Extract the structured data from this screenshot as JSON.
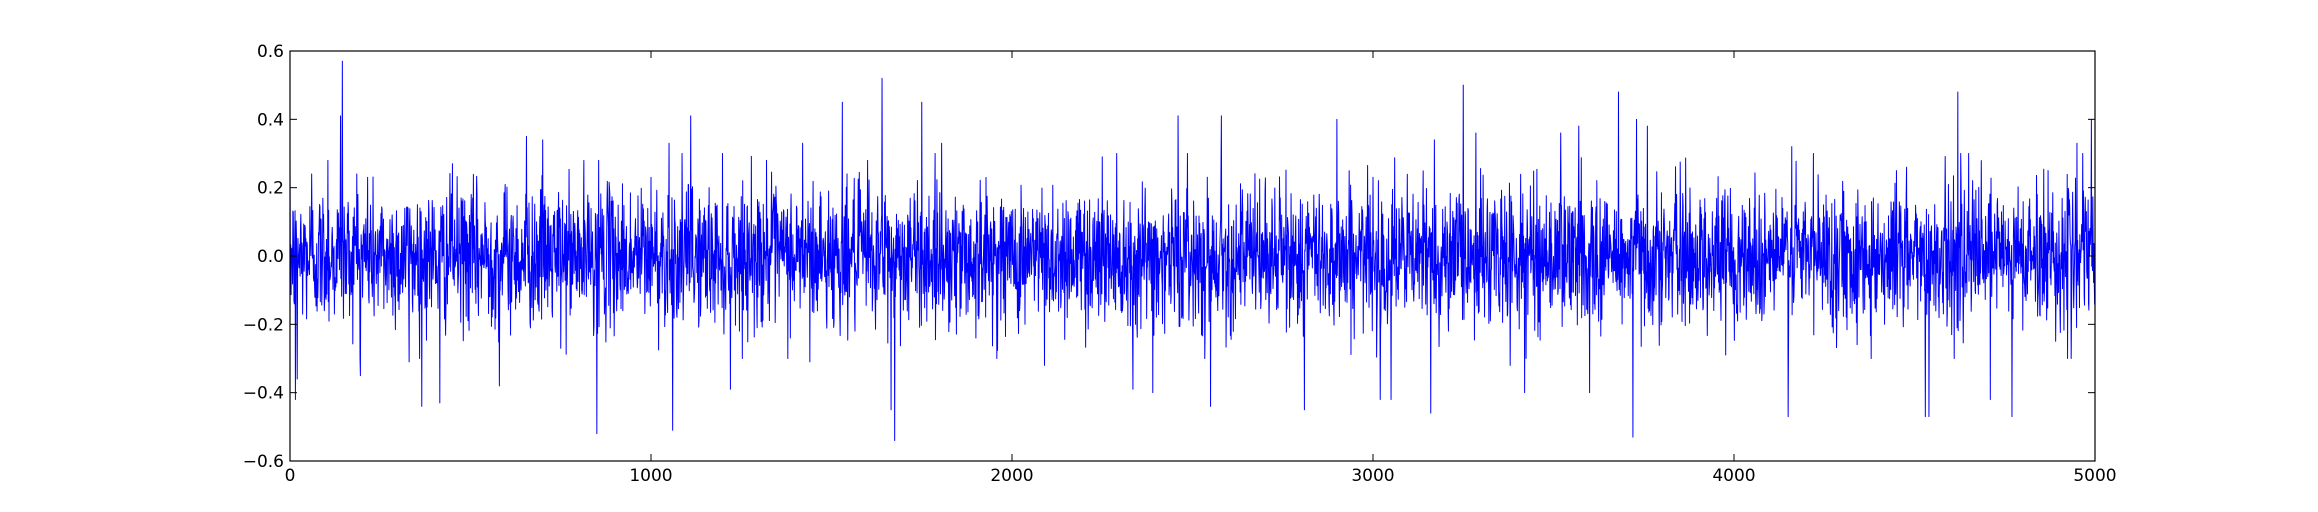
{
  "chart_data": {
    "type": "line",
    "title": "",
    "xlabel": "",
    "ylabel": "",
    "xlim": [
      0,
      5000
    ],
    "ylim": [
      -0.6,
      0.6
    ],
    "xticks": [
      0,
      1000,
      2000,
      3000,
      4000,
      5000
    ],
    "xtick_labels": [
      "0",
      "1000",
      "2000",
      "3000",
      "4000",
      "5000"
    ],
    "yticks": [
      -0.6,
      -0.4,
      -0.2,
      0.0,
      0.2,
      0.4,
      0.6
    ],
    "ytick_labels": [
      "−0.6",
      "−0.4",
      "−0.2",
      "0.0",
      "0.2",
      "0.4",
      "0.6"
    ],
    "grid": false,
    "legend": "none",
    "line_color": "#0000ff",
    "series": [
      {
        "n_points": 5000,
        "noise_std": 0.1,
        "peaks": [
          [
            15,
            -0.42
          ],
          [
            20,
            -0.36
          ],
          [
            60,
            0.24
          ],
          [
            105,
            0.28
          ],
          [
            140,
            0.41
          ],
          [
            145,
            0.57
          ],
          [
            185,
            0.24
          ],
          [
            195,
            -0.35
          ],
          [
            215,
            0.23
          ],
          [
            330,
            -0.31
          ],
          [
            365,
            -0.44
          ],
          [
            415,
            -0.43
          ],
          [
            450,
            0.27
          ],
          [
            580,
            -0.38
          ],
          [
            655,
            0.35
          ],
          [
            700,
            0.34
          ],
          [
            750,
            -0.27
          ],
          [
            850,
            -0.52
          ],
          [
            855,
            0.28
          ],
          [
            1000,
            0.23
          ],
          [
            1050,
            0.33
          ],
          [
            1060,
            -0.51
          ],
          [
            1110,
            0.41
          ],
          [
            1220,
            -0.39
          ],
          [
            1320,
            0.28
          ],
          [
            1420,
            0.33
          ],
          [
            1440,
            -0.31
          ],
          [
            1530,
            0.45
          ],
          [
            1600,
            0.28
          ],
          [
            1640,
            0.52
          ],
          [
            1665,
            -0.45
          ],
          [
            1675,
            -0.54
          ],
          [
            1750,
            0.45
          ],
          [
            1805,
            0.33
          ],
          [
            1900,
            -0.24
          ],
          [
            2090,
            -0.32
          ],
          [
            2250,
            0.29
          ],
          [
            2290,
            0.3
          ],
          [
            2335,
            -0.39
          ],
          [
            2390,
            -0.4
          ],
          [
            2460,
            0.41
          ],
          [
            2550,
            -0.44
          ],
          [
            2580,
            0.41
          ],
          [
            2810,
            -0.45
          ],
          [
            2900,
            0.4
          ],
          [
            3020,
            -0.42
          ],
          [
            3050,
            -0.42
          ],
          [
            3160,
            -0.46
          ],
          [
            3170,
            0.34
          ],
          [
            3250,
            0.5
          ],
          [
            3285,
            0.36
          ],
          [
            3380,
            -0.32
          ],
          [
            3420,
            -0.4
          ],
          [
            3520,
            0.36
          ],
          [
            3570,
            0.38
          ],
          [
            3600,
            -0.4
          ],
          [
            3680,
            0.48
          ],
          [
            3720,
            -0.53
          ],
          [
            3730,
            0.4
          ],
          [
            3760,
            0.38
          ],
          [
            4150,
            -0.47
          ],
          [
            4160,
            0.32
          ],
          [
            4220,
            0.3
          ],
          [
            4380,
            -0.3
          ],
          [
            4450,
            0.25
          ],
          [
            4530,
            -0.47
          ],
          [
            4540,
            -0.47
          ],
          [
            4620,
            0.48
          ],
          [
            4650,
            0.3
          ],
          [
            4710,
            -0.42
          ],
          [
            4770,
            -0.47
          ],
          [
            4870,
            0.25
          ],
          [
            4950,
            0.33
          ],
          [
            4990,
            0.4
          ]
        ]
      }
    ]
  }
}
